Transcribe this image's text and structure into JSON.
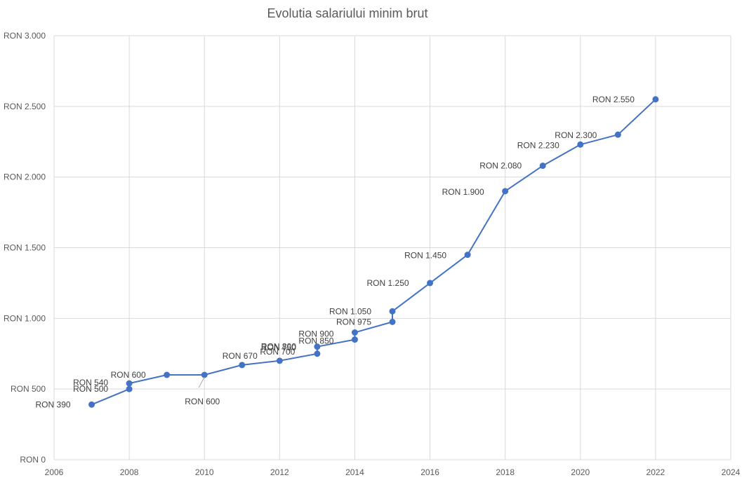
{
  "chart_data": {
    "type": "scatter",
    "title": "Evolutia salariului minim brut",
    "xlabel": "",
    "ylabel": "",
    "xlim": [
      2006,
      2024
    ],
    "ylim": [
      0,
      3000
    ],
    "grid": true,
    "legend": "none",
    "x_ticks": [
      2006,
      2008,
      2010,
      2012,
      2014,
      2016,
      2018,
      2020,
      2022,
      2024
    ],
    "x_tick_labels": [
      "2006",
      "2008",
      "2010",
      "2012",
      "2014",
      "2016",
      "2018",
      "2020",
      "2022",
      "2024"
    ],
    "y_ticks": [
      0,
      500,
      1000,
      1500,
      2000,
      2500,
      3000
    ],
    "y_tick_labels": [
      "RON 0",
      "RON 500",
      "RON 1.000",
      "RON 1.500",
      "RON 2.000",
      "RON 2.500",
      "RON 3.000"
    ],
    "series": [
      {
        "color": "#4472c4",
        "points": [
          {
            "x": 2007,
            "y": 390,
            "label": "RON 390"
          },
          {
            "x": 2008,
            "y": 500,
            "label": "RON 500"
          },
          {
            "x": 2008,
            "y": 540,
            "label": "RON 540"
          },
          {
            "x": 2009,
            "y": 600,
            "label": "RON 600"
          },
          {
            "x": 2010,
            "y": 600,
            "label": "RON 600"
          },
          {
            "x": 2011,
            "y": 670,
            "label": "RON 670"
          },
          {
            "x": 2012,
            "y": 700,
            "label": "RON 700"
          },
          {
            "x": 2013,
            "y": 750,
            "label": "RON 750"
          },
          {
            "x": 2013,
            "y": 800,
            "label": "RON 800"
          },
          {
            "x": 2014,
            "y": 850,
            "label": "RON 850"
          },
          {
            "x": 2014,
            "y": 900,
            "label": "RON 900"
          },
          {
            "x": 2015,
            "y": 975,
            "label": "RON 975"
          },
          {
            "x": 2015,
            "y": 1050,
            "label": "RON 1.050"
          },
          {
            "x": 2016,
            "y": 1250,
            "label": "RON 1.250"
          },
          {
            "x": 2017,
            "y": 1450,
            "label": "RON 1.450"
          },
          {
            "x": 2018,
            "y": 1900,
            "label": "RON 1.900"
          },
          {
            "x": 2019,
            "y": 2080,
            "label": "RON 2.080"
          },
          {
            "x": 2020,
            "y": 2230,
            "label": "RON 2.230"
          },
          {
            "x": 2021,
            "y": 2300,
            "label": "RON 2.300"
          },
          {
            "x": 2022,
            "y": 2550,
            "label": "RON 2.550"
          }
        ]
      }
    ]
  }
}
